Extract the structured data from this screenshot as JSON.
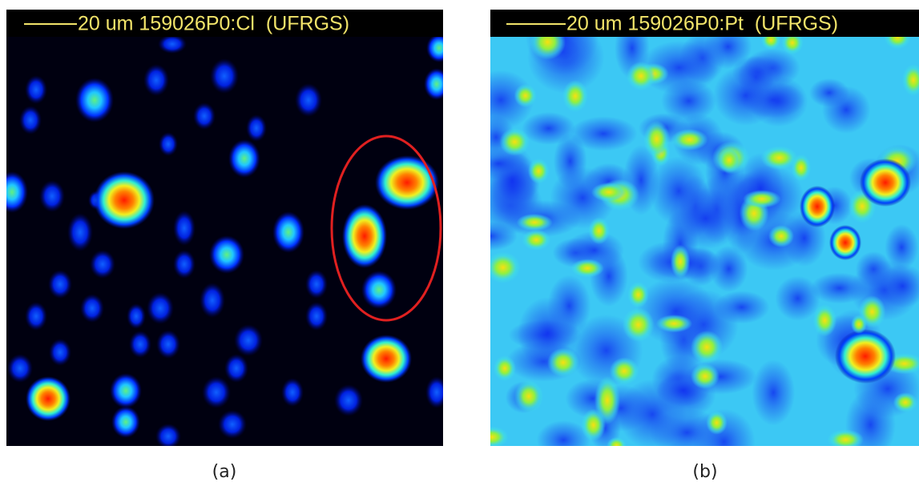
{
  "panels": [
    {
      "header": "20 um 159026P0:Cl  (UFRGS)",
      "caption": "(a)"
    },
    {
      "header": "20 um 159026P0:Pt  (UFRGS)",
      "caption": "(b)"
    }
  ]
}
